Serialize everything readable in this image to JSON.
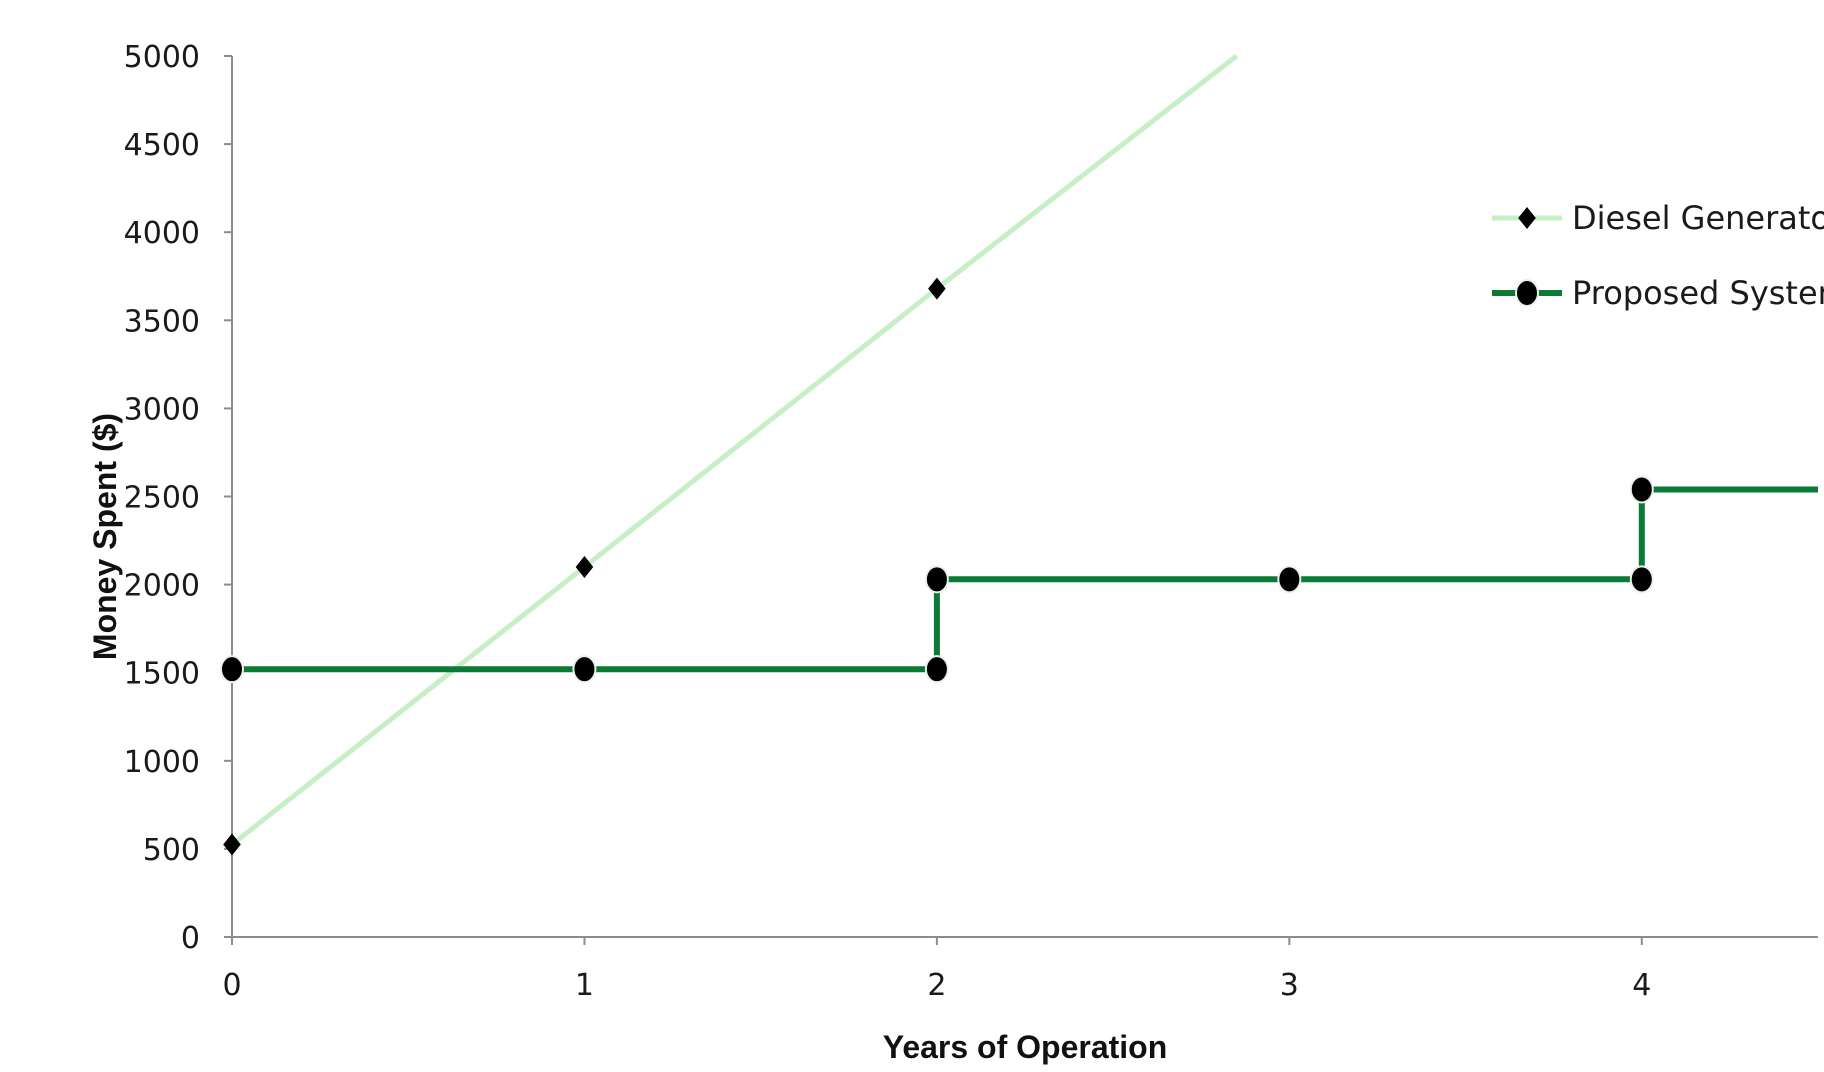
{
  "chart_data": {
    "type": "line",
    "xlabel": "Years of Operation",
    "ylabel": "Money Spent ($)",
    "xlim": [
      0,
      4.5
    ],
    "ylim": [
      0,
      5000
    ],
    "x_ticks": [
      0,
      1,
      2,
      3,
      4
    ],
    "y_ticks": [
      0,
      500,
      1000,
      1500,
      2000,
      2500,
      3000,
      3500,
      4000,
      4500,
      5000
    ],
    "grid": false,
    "legend_position": "top-right",
    "series": [
      {
        "name": "Diesel Generator",
        "color": "#c6efc6",
        "marker": "diamond",
        "marker_color": "#000000",
        "line_shape": "linear",
        "points": [
          {
            "x": 0,
            "y": 525
          },
          {
            "x": 1,
            "y": 2100
          },
          {
            "x": 2,
            "y": 3680
          },
          {
            "x": 2.85,
            "y": 5000
          }
        ],
        "marker_points": [
          {
            "x": 0,
            "y": 525
          },
          {
            "x": 1,
            "y": 2100
          },
          {
            "x": 2,
            "y": 3680
          }
        ]
      },
      {
        "name": "Proposed System",
        "color": "#0a7a35",
        "marker": "circle",
        "marker_color": "#000000",
        "line_shape": "step",
        "points": [
          {
            "x": 0,
            "y": 1520
          },
          {
            "x": 1,
            "y": 1520
          },
          {
            "x": 2,
            "y": 1520
          },
          {
            "x": 2,
            "y": 2030
          },
          {
            "x": 3,
            "y": 2030
          },
          {
            "x": 4,
            "y": 2030
          },
          {
            "x": 4,
            "y": 2540
          },
          {
            "x": 4.5,
            "y": 2540
          }
        ],
        "marker_points": [
          {
            "x": 0,
            "y": 1520
          },
          {
            "x": 1,
            "y": 1520
          },
          {
            "x": 2,
            "y": 1520
          },
          {
            "x": 2,
            "y": 2030
          },
          {
            "x": 3,
            "y": 2030
          },
          {
            "x": 4,
            "y": 2030
          },
          {
            "x": 4,
            "y": 2540
          }
        ]
      }
    ]
  }
}
